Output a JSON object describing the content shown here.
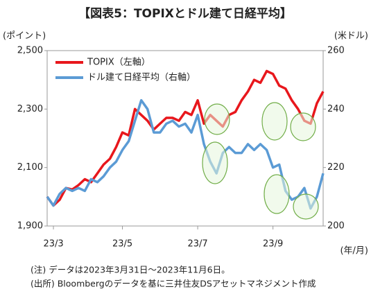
{
  "chart_data": {
    "type": "line",
    "title": "【図表5：TOPIXとドル建て日経平均】",
    "y_label": "(ポイント)",
    "y2_label": "(米ドル)",
    "x_label": "(年/月)",
    "notes": [
      "(注) データは2023年3月31日～2023年11月6日。",
      "(出所) Bloombergのデータを基に三井住友DSアセットマネジメント作成"
    ],
    "categories": [
      null,
      "23/3",
      null,
      null,
      null,
      null,
      null,
      null,
      null,
      null,
      null,
      null,
      "23/5",
      null,
      null,
      null,
      null,
      null,
      null,
      null,
      null,
      null,
      null,
      null,
      "23/7",
      null,
      null,
      null,
      null,
      null,
      null,
      null,
      null,
      null,
      null,
      null,
      "23/9",
      null,
      null,
      null,
      null,
      null,
      null,
      null,
      null
    ],
    "ylim": [
      1900,
      2500
    ],
    "yticks": [
      {
        "value": 1900,
        "label": "1,900"
      },
      {
        "value": 2100,
        "label": "2,100"
      },
      {
        "value": 2300,
        "label": "2,300"
      },
      {
        "value": 2500,
        "label": "2,500"
      }
    ],
    "y2lim": [
      200,
      260
    ],
    "y2ticks": [
      200,
      220,
      240,
      260
    ],
    "legend": "upper left",
    "series": [
      {
        "name": "TOPIX（左軸）",
        "color": "#e8171c",
        "values": [
          2000,
          1970,
          1990,
          2030,
          2025,
          2040,
          2060,
          2050,
          2080,
          2110,
          2130,
          2170,
          2220,
          2210,
          2300,
          2280,
          2260,
          2230,
          2250,
          2270,
          2270,
          2260,
          2290,
          2280,
          2330,
          2250,
          2280,
          2260,
          2240,
          2280,
          2290,
          2330,
          2360,
          2400,
          2390,
          2430,
          2420,
          2380,
          2370,
          2330,
          2300,
          2260,
          2250,
          2320,
          2360
        ]
      },
      {
        "name": "ドル建て日経平均（右軸）",
        "color": "#5b9bd5",
        "axis": "y2",
        "values": [
          210,
          207,
          211,
          213,
          212,
          213,
          212,
          216,
          215,
          217,
          220,
          222,
          226,
          229,
          236,
          243,
          240,
          232,
          232,
          235,
          236,
          234,
          235,
          232,
          238,
          228,
          222,
          218,
          225,
          227,
          225,
          225,
          228,
          226,
          228,
          226,
          220,
          221,
          212,
          209,
          210,
          213,
          206,
          210,
          218
        ]
      }
    ]
  }
}
